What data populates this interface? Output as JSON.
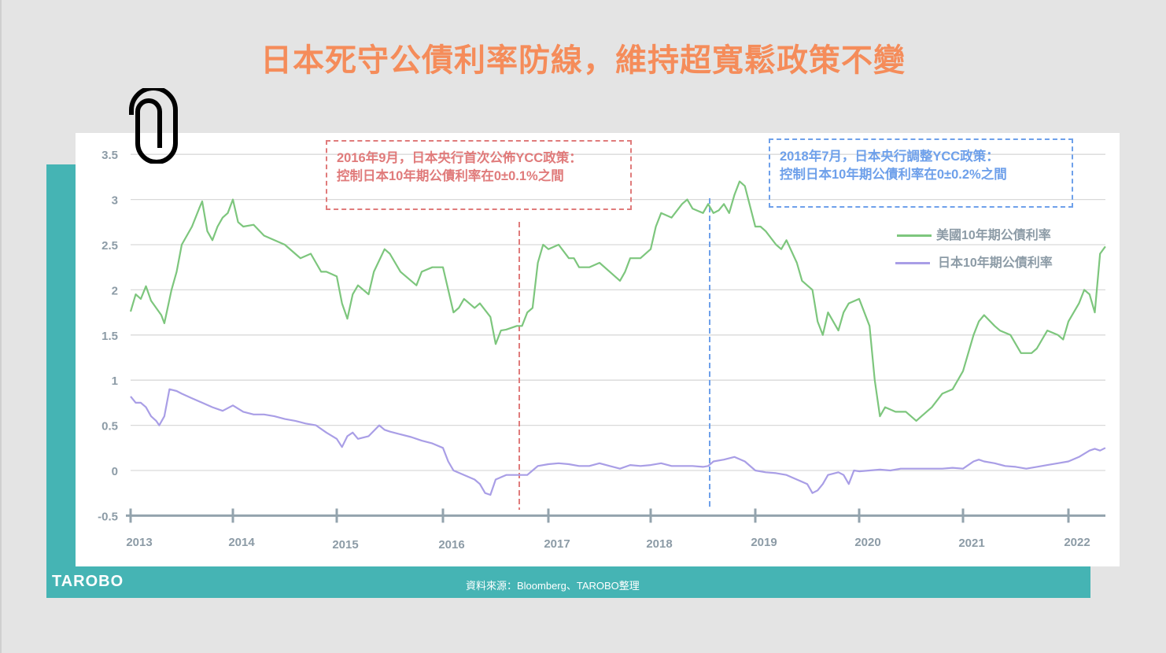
{
  "title": "日本死守公債利率防線，維持超寬鬆政策不變",
  "annotations": [
    {
      "line1": "2016年9月，日本央行首次公佈YCC政策：",
      "line2": "控制日本10年期公債利率在0±0.1%之間",
      "color": "#e07b7b"
    },
    {
      "line1": "2018年7月，日本央行調整YCC政策：",
      "line2": "控制日本10年期公債利率在0±0.2%之間",
      "color": "#6ea0ea"
    }
  ],
  "legend": [
    {
      "label": "美國10年期公債利率",
      "color": "#7dc67d"
    },
    {
      "label": "日本10年期公債利率",
      "color": "#a99ee6"
    }
  ],
  "footer": {
    "source": "資料來源：Bloomberg、TAROBO整理",
    "logo": "TAROBO"
  },
  "icons": {
    "clip": "paperclip-icon"
  },
  "chart_data": {
    "type": "line",
    "title": "日本死守公債利率防線，維持超寬鬆政策不變",
    "xlabel": "",
    "ylabel": "",
    "ylim": [
      -0.5,
      3.5
    ],
    "yticks": [
      "3.5",
      "3",
      "2.5",
      "2",
      "1.5",
      "1",
      "0.5",
      "0",
      "-0.5"
    ],
    "xticks": [
      "2013",
      "2014",
      "2015",
      "2016",
      "2017",
      "2018",
      "2019",
      "2020",
      "2021",
      "2022"
    ],
    "grid": true,
    "legend_position": "upper right",
    "vlines": [
      {
        "x": "2016-09",
        "color": "#e07b7b",
        "style": "dashed"
      },
      {
        "x": "2018-07",
        "color": "#6ea0ea",
        "style": "dashed"
      }
    ],
    "series": [
      {
        "name": "美國10年期公債利率",
        "color": "#7dc67d",
        "points": [
          [
            2013.0,
            1.76
          ],
          [
            2013.05,
            1.95
          ],
          [
            2013.1,
            1.9
          ],
          [
            2013.15,
            2.04
          ],
          [
            2013.2,
            1.88
          ],
          [
            2013.3,
            1.72
          ],
          [
            2013.33,
            1.63
          ],
          [
            2013.4,
            2.0
          ],
          [
            2013.45,
            2.2
          ],
          [
            2013.5,
            2.5
          ],
          [
            2013.55,
            2.6
          ],
          [
            2013.6,
            2.7
          ],
          [
            2013.67,
            2.9
          ],
          [
            2013.7,
            2.98
          ],
          [
            2013.75,
            2.65
          ],
          [
            2013.8,
            2.55
          ],
          [
            2013.85,
            2.7
          ],
          [
            2013.9,
            2.8
          ],
          [
            2013.95,
            2.85
          ],
          [
            2014.0,
            3.0
          ],
          [
            2014.05,
            2.75
          ],
          [
            2014.1,
            2.7
          ],
          [
            2014.2,
            2.72
          ],
          [
            2014.3,
            2.6
          ],
          [
            2014.4,
            2.55
          ],
          [
            2014.5,
            2.5
          ],
          [
            2014.6,
            2.4
          ],
          [
            2014.65,
            2.35
          ],
          [
            2014.75,
            2.4
          ],
          [
            2014.8,
            2.3
          ],
          [
            2014.85,
            2.2
          ],
          [
            2014.9,
            2.2
          ],
          [
            2015.0,
            2.15
          ],
          [
            2015.05,
            1.85
          ],
          [
            2015.1,
            1.68
          ],
          [
            2015.15,
            1.95
          ],
          [
            2015.2,
            2.05
          ],
          [
            2015.3,
            1.95
          ],
          [
            2015.35,
            2.2
          ],
          [
            2015.45,
            2.45
          ],
          [
            2015.5,
            2.4
          ],
          [
            2015.6,
            2.2
          ],
          [
            2015.7,
            2.1
          ],
          [
            2015.75,
            2.05
          ],
          [
            2015.8,
            2.2
          ],
          [
            2015.9,
            2.25
          ],
          [
            2016.0,
            2.25
          ],
          [
            2016.05,
            2.0
          ],
          [
            2016.1,
            1.75
          ],
          [
            2016.15,
            1.8
          ],
          [
            2016.2,
            1.9
          ],
          [
            2016.3,
            1.8
          ],
          [
            2016.35,
            1.85
          ],
          [
            2016.45,
            1.7
          ],
          [
            2016.5,
            1.4
          ],
          [
            2016.55,
            1.55
          ],
          [
            2016.6,
            1.56
          ],
          [
            2016.7,
            1.6
          ],
          [
            2016.75,
            1.6
          ],
          [
            2016.8,
            1.75
          ],
          [
            2016.85,
            1.8
          ],
          [
            2016.9,
            2.3
          ],
          [
            2016.95,
            2.5
          ],
          [
            2017.0,
            2.45
          ],
          [
            2017.1,
            2.5
          ],
          [
            2017.2,
            2.35
          ],
          [
            2017.25,
            2.35
          ],
          [
            2017.3,
            2.25
          ],
          [
            2017.4,
            2.25
          ],
          [
            2017.5,
            2.3
          ],
          [
            2017.6,
            2.2
          ],
          [
            2017.7,
            2.1
          ],
          [
            2017.75,
            2.2
          ],
          [
            2017.8,
            2.35
          ],
          [
            2017.9,
            2.35
          ],
          [
            2018.0,
            2.45
          ],
          [
            2018.05,
            2.7
          ],
          [
            2018.1,
            2.85
          ],
          [
            2018.2,
            2.8
          ],
          [
            2018.3,
            2.95
          ],
          [
            2018.35,
            3.0
          ],
          [
            2018.4,
            2.9
          ],
          [
            2018.5,
            2.85
          ],
          [
            2018.55,
            2.95
          ],
          [
            2018.6,
            2.85
          ],
          [
            2018.65,
            2.88
          ],
          [
            2018.7,
            2.95
          ],
          [
            2018.75,
            2.85
          ],
          [
            2018.8,
            3.05
          ],
          [
            2018.85,
            3.2
          ],
          [
            2018.9,
            3.15
          ],
          [
            2019.0,
            2.7
          ],
          [
            2019.05,
            2.7
          ],
          [
            2019.1,
            2.65
          ],
          [
            2019.2,
            2.5
          ],
          [
            2019.25,
            2.45
          ],
          [
            2019.3,
            2.55
          ],
          [
            2019.4,
            2.3
          ],
          [
            2019.45,
            2.1
          ],
          [
            2019.5,
            2.05
          ],
          [
            2019.55,
            2.0
          ],
          [
            2019.6,
            1.65
          ],
          [
            2019.65,
            1.5
          ],
          [
            2019.7,
            1.75
          ],
          [
            2019.8,
            1.55
          ],
          [
            2019.85,
            1.75
          ],
          [
            2019.9,
            1.85
          ],
          [
            2020.0,
            1.9
          ],
          [
            2020.1,
            1.6
          ],
          [
            2020.15,
            1.0
          ],
          [
            2020.2,
            0.6
          ],
          [
            2020.25,
            0.7
          ],
          [
            2020.35,
            0.65
          ],
          [
            2020.45,
            0.65
          ],
          [
            2020.55,
            0.55
          ],
          [
            2020.6,
            0.6
          ],
          [
            2020.7,
            0.7
          ],
          [
            2020.8,
            0.85
          ],
          [
            2020.9,
            0.9
          ],
          [
            2021.0,
            1.1
          ],
          [
            2021.1,
            1.5
          ],
          [
            2021.15,
            1.65
          ],
          [
            2021.2,
            1.72
          ],
          [
            2021.3,
            1.6
          ],
          [
            2021.35,
            1.55
          ],
          [
            2021.45,
            1.5
          ],
          [
            2021.55,
            1.3
          ],
          [
            2021.65,
            1.3
          ],
          [
            2021.7,
            1.35
          ],
          [
            2021.8,
            1.55
          ],
          [
            2021.9,
            1.5
          ],
          [
            2021.95,
            1.45
          ],
          [
            2022.0,
            1.65
          ],
          [
            2022.1,
            1.85
          ],
          [
            2022.15,
            2.0
          ],
          [
            2022.2,
            1.95
          ],
          [
            2022.25,
            1.75
          ],
          [
            2022.3,
            2.4
          ],
          [
            2022.35,
            2.48
          ]
        ]
      },
      {
        "name": "日本10年期公債利率",
        "color": "#a99ee6",
        "points": [
          [
            2013.0,
            0.82
          ],
          [
            2013.05,
            0.75
          ],
          [
            2013.1,
            0.75
          ],
          [
            2013.15,
            0.7
          ],
          [
            2013.2,
            0.6
          ],
          [
            2013.25,
            0.55
          ],
          [
            2013.28,
            0.5
          ],
          [
            2013.33,
            0.6
          ],
          [
            2013.38,
            0.9
          ],
          [
            2013.45,
            0.88
          ],
          [
            2013.5,
            0.85
          ],
          [
            2013.6,
            0.8
          ],
          [
            2013.7,
            0.75
          ],
          [
            2013.8,
            0.7
          ],
          [
            2013.9,
            0.66
          ],
          [
            2014.0,
            0.72
          ],
          [
            2014.1,
            0.65
          ],
          [
            2014.2,
            0.62
          ],
          [
            2014.3,
            0.62
          ],
          [
            2014.4,
            0.6
          ],
          [
            2014.5,
            0.57
          ],
          [
            2014.6,
            0.55
          ],
          [
            2014.7,
            0.52
          ],
          [
            2014.8,
            0.5
          ],
          [
            2014.9,
            0.42
          ],
          [
            2015.0,
            0.35
          ],
          [
            2015.05,
            0.26
          ],
          [
            2015.1,
            0.38
          ],
          [
            2015.15,
            0.42
          ],
          [
            2015.2,
            0.35
          ],
          [
            2015.3,
            0.38
          ],
          [
            2015.4,
            0.5
          ],
          [
            2015.45,
            0.45
          ],
          [
            2015.5,
            0.43
          ],
          [
            2015.6,
            0.4
          ],
          [
            2015.7,
            0.37
          ],
          [
            2015.8,
            0.33
          ],
          [
            2015.9,
            0.3
          ],
          [
            2016.0,
            0.25
          ],
          [
            2016.05,
            0.1
          ],
          [
            2016.1,
            0.0
          ],
          [
            2016.2,
            -0.05
          ],
          [
            2016.3,
            -0.1
          ],
          [
            2016.35,
            -0.15
          ],
          [
            2016.4,
            -0.25
          ],
          [
            2016.45,
            -0.27
          ],
          [
            2016.5,
            -0.1
          ],
          [
            2016.6,
            -0.05
          ],
          [
            2016.7,
            -0.05
          ],
          [
            2016.8,
            -0.05
          ],
          [
            2016.85,
            0.0
          ],
          [
            2016.9,
            0.05
          ],
          [
            2017.0,
            0.07
          ],
          [
            2017.1,
            0.08
          ],
          [
            2017.2,
            0.07
          ],
          [
            2017.3,
            0.05
          ],
          [
            2017.4,
            0.05
          ],
          [
            2017.5,
            0.08
          ],
          [
            2017.6,
            0.05
          ],
          [
            2017.7,
            0.02
          ],
          [
            2017.8,
            0.06
          ],
          [
            2017.9,
            0.05
          ],
          [
            2018.0,
            0.06
          ],
          [
            2018.1,
            0.08
          ],
          [
            2018.2,
            0.05
          ],
          [
            2018.3,
            0.05
          ],
          [
            2018.4,
            0.05
          ],
          [
            2018.5,
            0.04
          ],
          [
            2018.55,
            0.05
          ],
          [
            2018.6,
            0.1
          ],
          [
            2018.7,
            0.12
          ],
          [
            2018.8,
            0.15
          ],
          [
            2018.9,
            0.1
          ],
          [
            2019.0,
            0.0
          ],
          [
            2019.1,
            -0.02
          ],
          [
            2019.2,
            -0.03
          ],
          [
            2019.3,
            -0.05
          ],
          [
            2019.4,
            -0.1
          ],
          [
            2019.5,
            -0.15
          ],
          [
            2019.55,
            -0.25
          ],
          [
            2019.6,
            -0.22
          ],
          [
            2019.65,
            -0.15
          ],
          [
            2019.7,
            -0.05
          ],
          [
            2019.8,
            -0.02
          ],
          [
            2019.85,
            -0.05
          ],
          [
            2019.9,
            -0.15
          ],
          [
            2019.95,
            0.0
          ],
          [
            2020.0,
            -0.01
          ],
          [
            2020.1,
            0.0
          ],
          [
            2020.2,
            0.01
          ],
          [
            2020.3,
            0.0
          ],
          [
            2020.4,
            0.02
          ],
          [
            2020.5,
            0.02
          ],
          [
            2020.6,
            0.02
          ],
          [
            2020.7,
            0.02
          ],
          [
            2020.8,
            0.02
          ],
          [
            2020.9,
            0.03
          ],
          [
            2021.0,
            0.02
          ],
          [
            2021.1,
            0.1
          ],
          [
            2021.15,
            0.12
          ],
          [
            2021.2,
            0.1
          ],
          [
            2021.3,
            0.08
          ],
          [
            2021.4,
            0.05
          ],
          [
            2021.5,
            0.04
          ],
          [
            2021.6,
            0.02
          ],
          [
            2021.7,
            0.04
          ],
          [
            2021.8,
            0.06
          ],
          [
            2021.9,
            0.08
          ],
          [
            2022.0,
            0.1
          ],
          [
            2022.1,
            0.15
          ],
          [
            2022.2,
            0.22
          ],
          [
            2022.25,
            0.24
          ],
          [
            2022.3,
            0.22
          ],
          [
            2022.35,
            0.25
          ]
        ]
      }
    ]
  }
}
